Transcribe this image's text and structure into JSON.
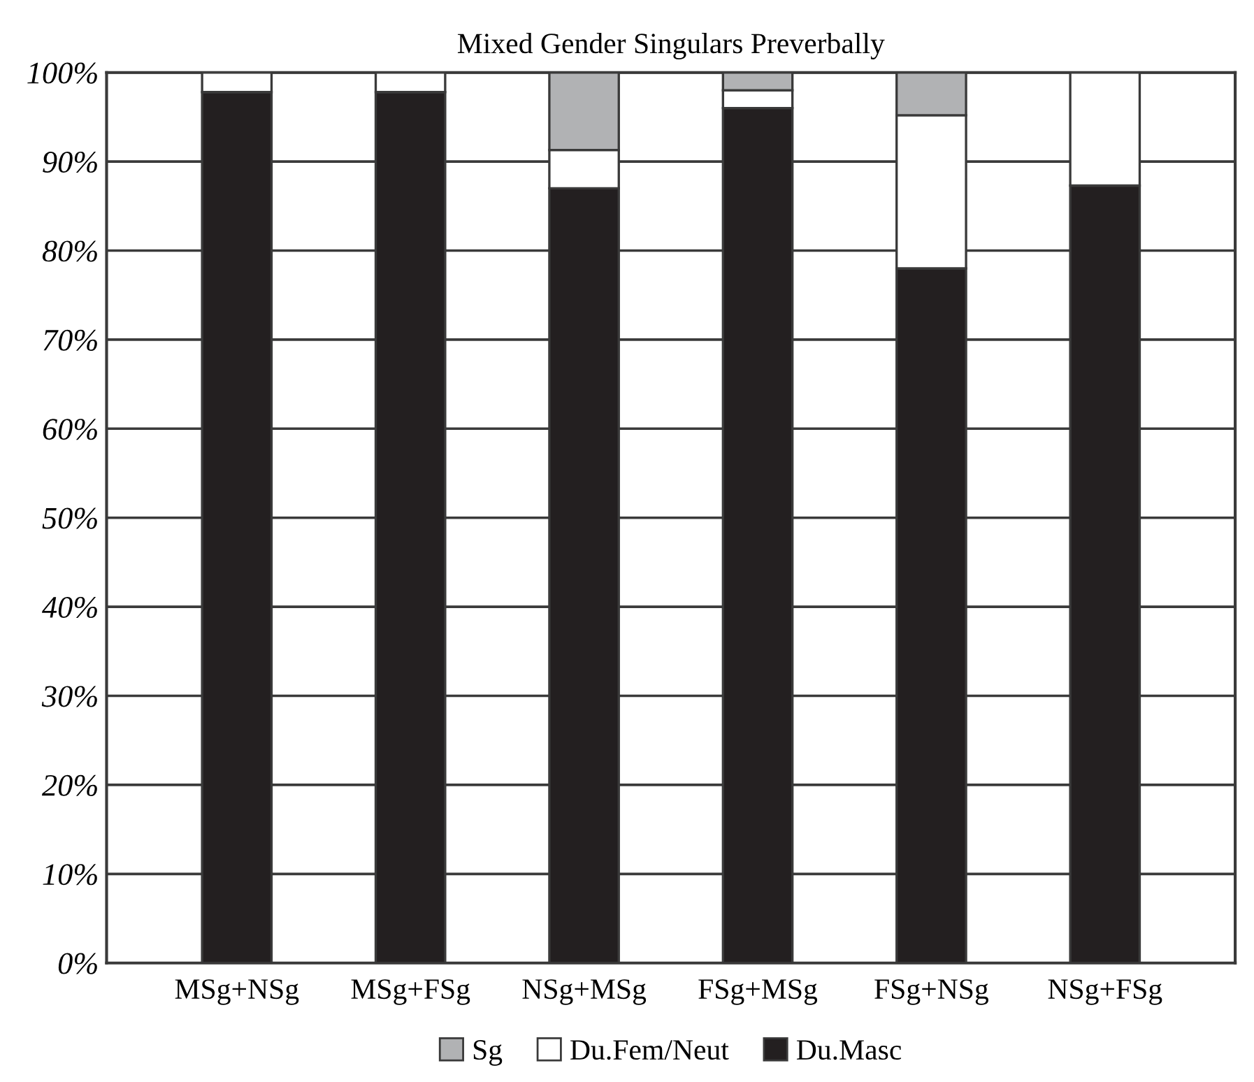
{
  "chart_data": {
    "type": "bar",
    "stacked": true,
    "title": "Mixed Gender Singulars Preverbally",
    "categories": [
      "MSg+NSg",
      "MSg+FSg",
      "NSg+MSg",
      "FSg+MSg",
      "FSg+NSg",
      "NSg+FSg"
    ],
    "series": [
      {
        "name": "Du.Masc",
        "color": "#231f20",
        "values": [
          97.8,
          97.8,
          87,
          96,
          78,
          87.3
        ]
      },
      {
        "name": "Du.Fem/Neut",
        "color": "#ffffff",
        "values": [
          2.2,
          2.2,
          4.3,
          2,
          17.2,
          12.7
        ]
      },
      {
        "name": "Sg",
        "color": "#b1b2b4",
        "values": [
          0,
          0,
          8.7,
          2,
          4.8,
          0
        ]
      }
    ],
    "ylim": [
      0,
      100
    ],
    "yticks": [
      {
        "value": 0,
        "label": "0%"
      },
      {
        "value": 10,
        "label": "10%"
      },
      {
        "value": 20,
        "label": "20%"
      },
      {
        "value": 30,
        "label": "30%"
      },
      {
        "value": 40,
        "label": "40%"
      },
      {
        "value": 50,
        "label": "50%"
      },
      {
        "value": 60,
        "label": "60%"
      },
      {
        "value": 70,
        "label": "70%"
      },
      {
        "value": 80,
        "label": "80%"
      },
      {
        "value": 90,
        "label": "90%"
      },
      {
        "value": 100,
        "label": "100%"
      }
    ],
    "grid": "y",
    "legend": "bottom"
  }
}
